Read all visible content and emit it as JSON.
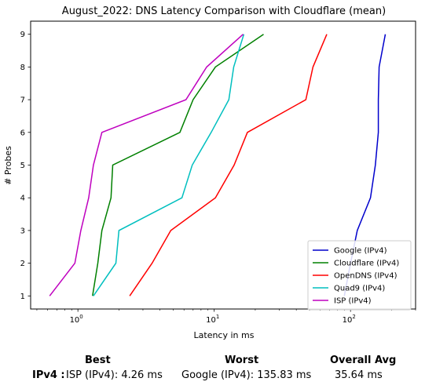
{
  "chart_data": {
    "type": "line",
    "title": "August_2022: DNS Latency Comparison with Cloudflare (mean)",
    "xlabel": "Latency in ms",
    "ylabel": "# Probes",
    "xscale": "log",
    "xlim": [
      0.45,
      300
    ],
    "ylim": [
      0.6,
      9.4
    ],
    "x_ticks": [
      {
        "value": 1,
        "base": "10",
        "exp": "0"
      },
      {
        "value": 10,
        "base": "10",
        "exp": "1"
      },
      {
        "value": 100,
        "base": "10",
        "exp": "2"
      }
    ],
    "y_ticks": [
      "1",
      "2",
      "3",
      "4",
      "5",
      "6",
      "7",
      "8",
      "9"
    ],
    "legend_position": "lower-right",
    "series": [
      {
        "name": "Google (IPv4)",
        "color": "#0000cc",
        "x": [
          90,
          100,
          112,
          140,
          152,
          160,
          160,
          162,
          180
        ],
        "y": [
          1,
          2,
          3,
          4,
          5,
          6,
          7,
          8,
          9
        ]
      },
      {
        "name": "Cloudflare (IPv4)",
        "color": "#008000",
        "x": [
          1.28,
          1.4,
          1.5,
          1.75,
          1.8,
          5.6,
          7.0,
          10.2,
          23.0
        ],
        "y": [
          1,
          2,
          3,
          4,
          5,
          6,
          7,
          8,
          9
        ]
      },
      {
        "name": "OpenDNS (IPv4)",
        "color": "#ff0000",
        "x": [
          2.4,
          3.5,
          4.8,
          10.2,
          14.0,
          17.5,
          47.0,
          53.0,
          67.0
        ],
        "y": [
          1,
          2,
          3,
          4,
          5,
          6,
          7,
          8,
          9
        ]
      },
      {
        "name": "Quad9 (IPv4)",
        "color": "#00bfbf",
        "x": [
          1.3,
          1.9,
          2.0,
          5.8,
          6.9,
          9.5,
          12.8,
          13.9,
          16.5
        ],
        "y": [
          1,
          2,
          3,
          4,
          5,
          6,
          7,
          8,
          9
        ]
      },
      {
        "name": "ISP (IPv4)",
        "color": "#bf00bf",
        "x": [
          0.62,
          0.95,
          1.05,
          1.2,
          1.3,
          1.5,
          6.2,
          8.8,
          16.3
        ],
        "y": [
          1,
          2,
          3,
          4,
          5,
          6,
          7,
          8,
          9
        ]
      }
    ]
  },
  "summary": {
    "best_header": "Best",
    "worst_header": "Worst",
    "avg_header": "Overall Avg",
    "row_label": "IPv4 :",
    "best_value": "ISP (IPv4): 4.26 ms",
    "worst_value": "Google (IPv4): 135.83 ms",
    "avg_value": "35.64 ms"
  }
}
